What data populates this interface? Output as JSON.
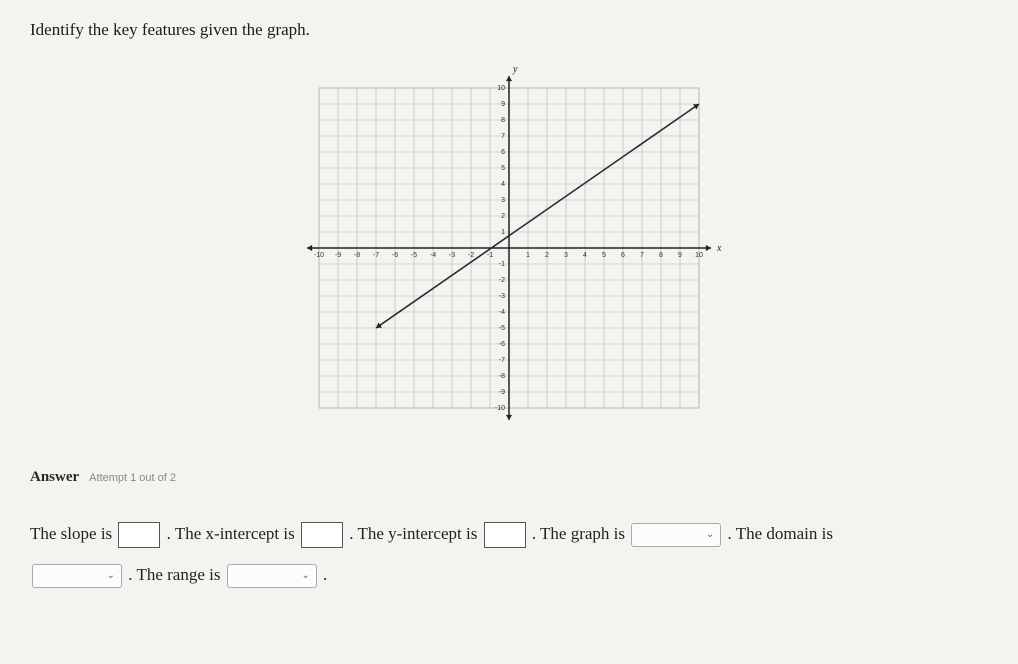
{
  "prompt": "Identify the key features given the graph.",
  "chart": {
    "type": "line",
    "xlim": [
      -10,
      10
    ],
    "ylim": [
      -10,
      10
    ],
    "tick_step": 1,
    "label_step": 1,
    "grid_color": "#b8b4ac",
    "axis_color": "#222222",
    "background_color": "#f5f3ef",
    "line_color": "#2a2a3a",
    "line_width": 1.6,
    "axis_label_x": "x",
    "axis_label_y": "y",
    "tick_fontsize": 7,
    "line_points": [
      [
        -7,
        -5
      ],
      [
        10,
        9
      ]
    ],
    "arrows": true
  },
  "answer": {
    "label": "Answer",
    "attempt": "Attempt 1 out of 2",
    "parts": {
      "slope": "The slope is",
      "xint": ". The x-intercept is",
      "yint": ". The y-intercept is",
      "graph": ". The graph is",
      "domain": ". The domain is",
      "range": ". The range is",
      "period": "."
    }
  }
}
